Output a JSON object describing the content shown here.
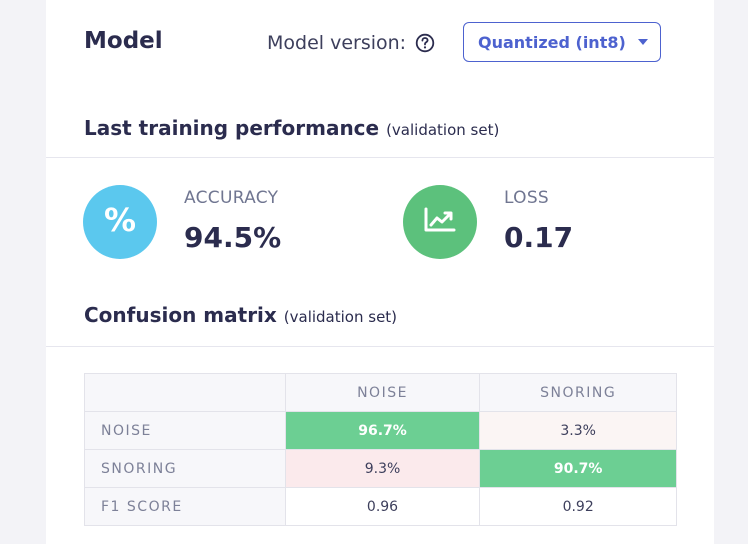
{
  "model": {
    "title": "Model",
    "version_label": "Model version:",
    "version_selected": "Quantized (int8)"
  },
  "performance": {
    "heading": "Last training performance",
    "heading_sub": "(validation set)",
    "accuracy": {
      "label": "ACCURACY",
      "value": "94.5%",
      "icon": "percent-icon",
      "color": "#5bc8ee"
    },
    "loss": {
      "label": "LOSS",
      "value": "0.17",
      "icon": "trending-chart-icon",
      "color": "#5cc17c"
    }
  },
  "confusion": {
    "heading": "Confusion matrix",
    "heading_sub": "(validation set)",
    "columns": [
      "NOISE",
      "SNORING"
    ],
    "rows": [
      {
        "label": "NOISE",
        "values": [
          "96.7%",
          "3.3%"
        ]
      },
      {
        "label": "SNORING",
        "values": [
          "9.3%",
          "90.7%"
        ]
      },
      {
        "label": "F1 SCORE",
        "values": [
          "0.96",
          "0.92"
        ]
      }
    ],
    "highlight_color": "#6ccf93"
  }
}
